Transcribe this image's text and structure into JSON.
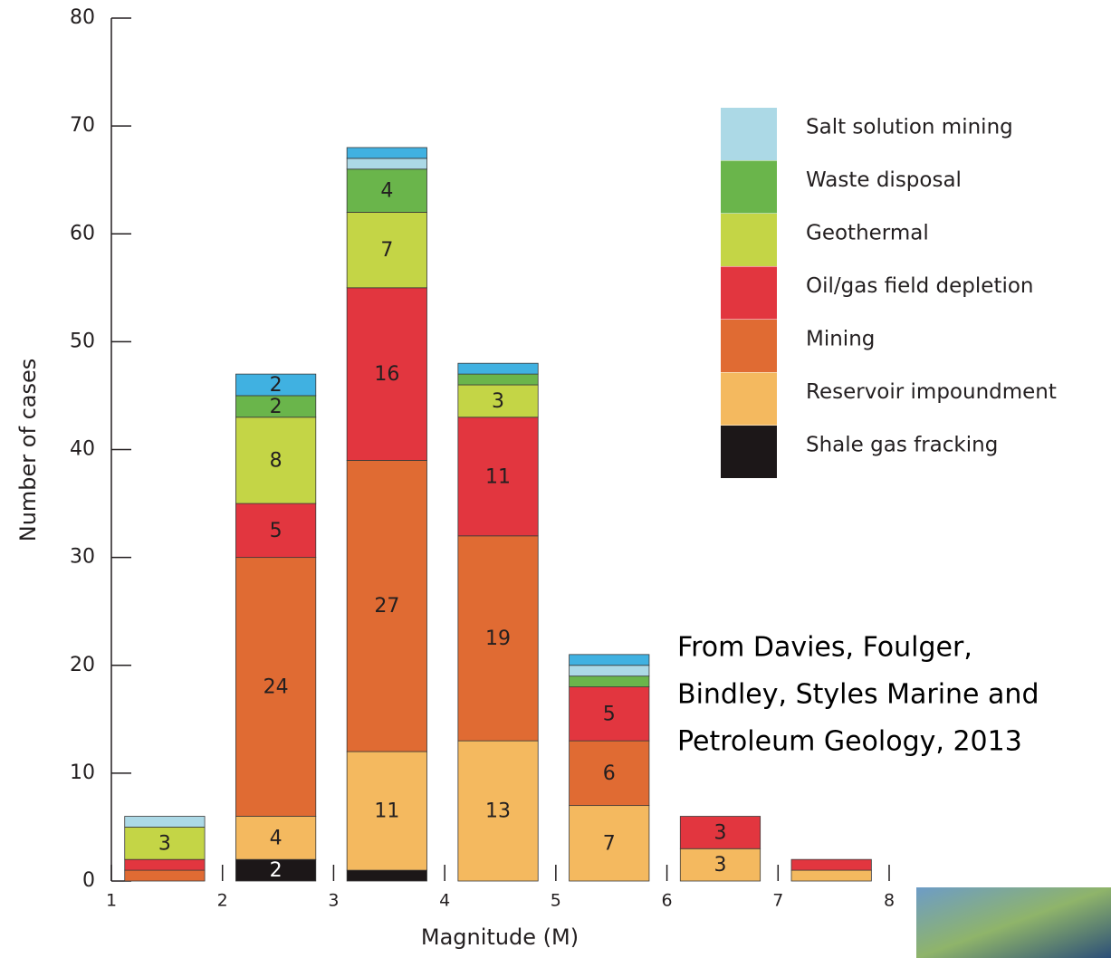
{
  "chart_data": {
    "type": "histogram",
    "x_label": "Magnitude (M)",
    "y_label": "Number of cases",
    "bins": [
      1,
      2,
      3,
      4,
      5,
      6,
      7,
      8
    ],
    "series": [
      {
        "name": "Shale gas fracking",
        "color": "#1c1718",
        "values": [
          0,
          2,
          1,
          0,
          0,
          0,
          0
        ]
      },
      {
        "name": "Reservoir impoundment",
        "color": "#f4b95f",
        "values": [
          0,
          4,
          11,
          13,
          7,
          3,
          1
        ]
      },
      {
        "name": "Mining",
        "color": "#e06b33",
        "values": [
          1,
          24,
          27,
          19,
          6,
          0,
          0
        ]
      },
      {
        "name": "Oil/gas field depletion",
        "color": "#e2363f",
        "values": [
          1,
          5,
          16,
          11,
          5,
          3,
          1
        ]
      },
      {
        "name": "Geothermal",
        "color": "#c4d546",
        "values": [
          3,
          8,
          7,
          3,
          0,
          0,
          0
        ]
      },
      {
        "name": "Waste disposal",
        "color": "#6ab54b",
        "values": [
          0,
          2,
          4,
          1,
          1,
          0,
          0
        ]
      },
      {
        "name": "Salt solution mining",
        "color": "#acd9e6",
        "values": [
          1,
          0,
          1,
          0,
          1,
          0,
          0
        ]
      },
      {
        "color": "#40b1e1",
        "values": [
          0,
          2,
          1,
          1,
          1,
          0,
          0
        ]
      }
    ],
    "xlim": [
      1,
      8
    ],
    "xticks": [
      1,
      2,
      3,
      4,
      5,
      6,
      7,
      8
    ],
    "ylim": [
      0,
      80
    ],
    "yticks": [
      0,
      10,
      20,
      30,
      40,
      50,
      60,
      70,
      80
    ],
    "annotation": [
      "From Davies, Foulger,",
      "Bindley, Styles Marine and",
      "Petroleum Geology, 2013"
    ]
  }
}
